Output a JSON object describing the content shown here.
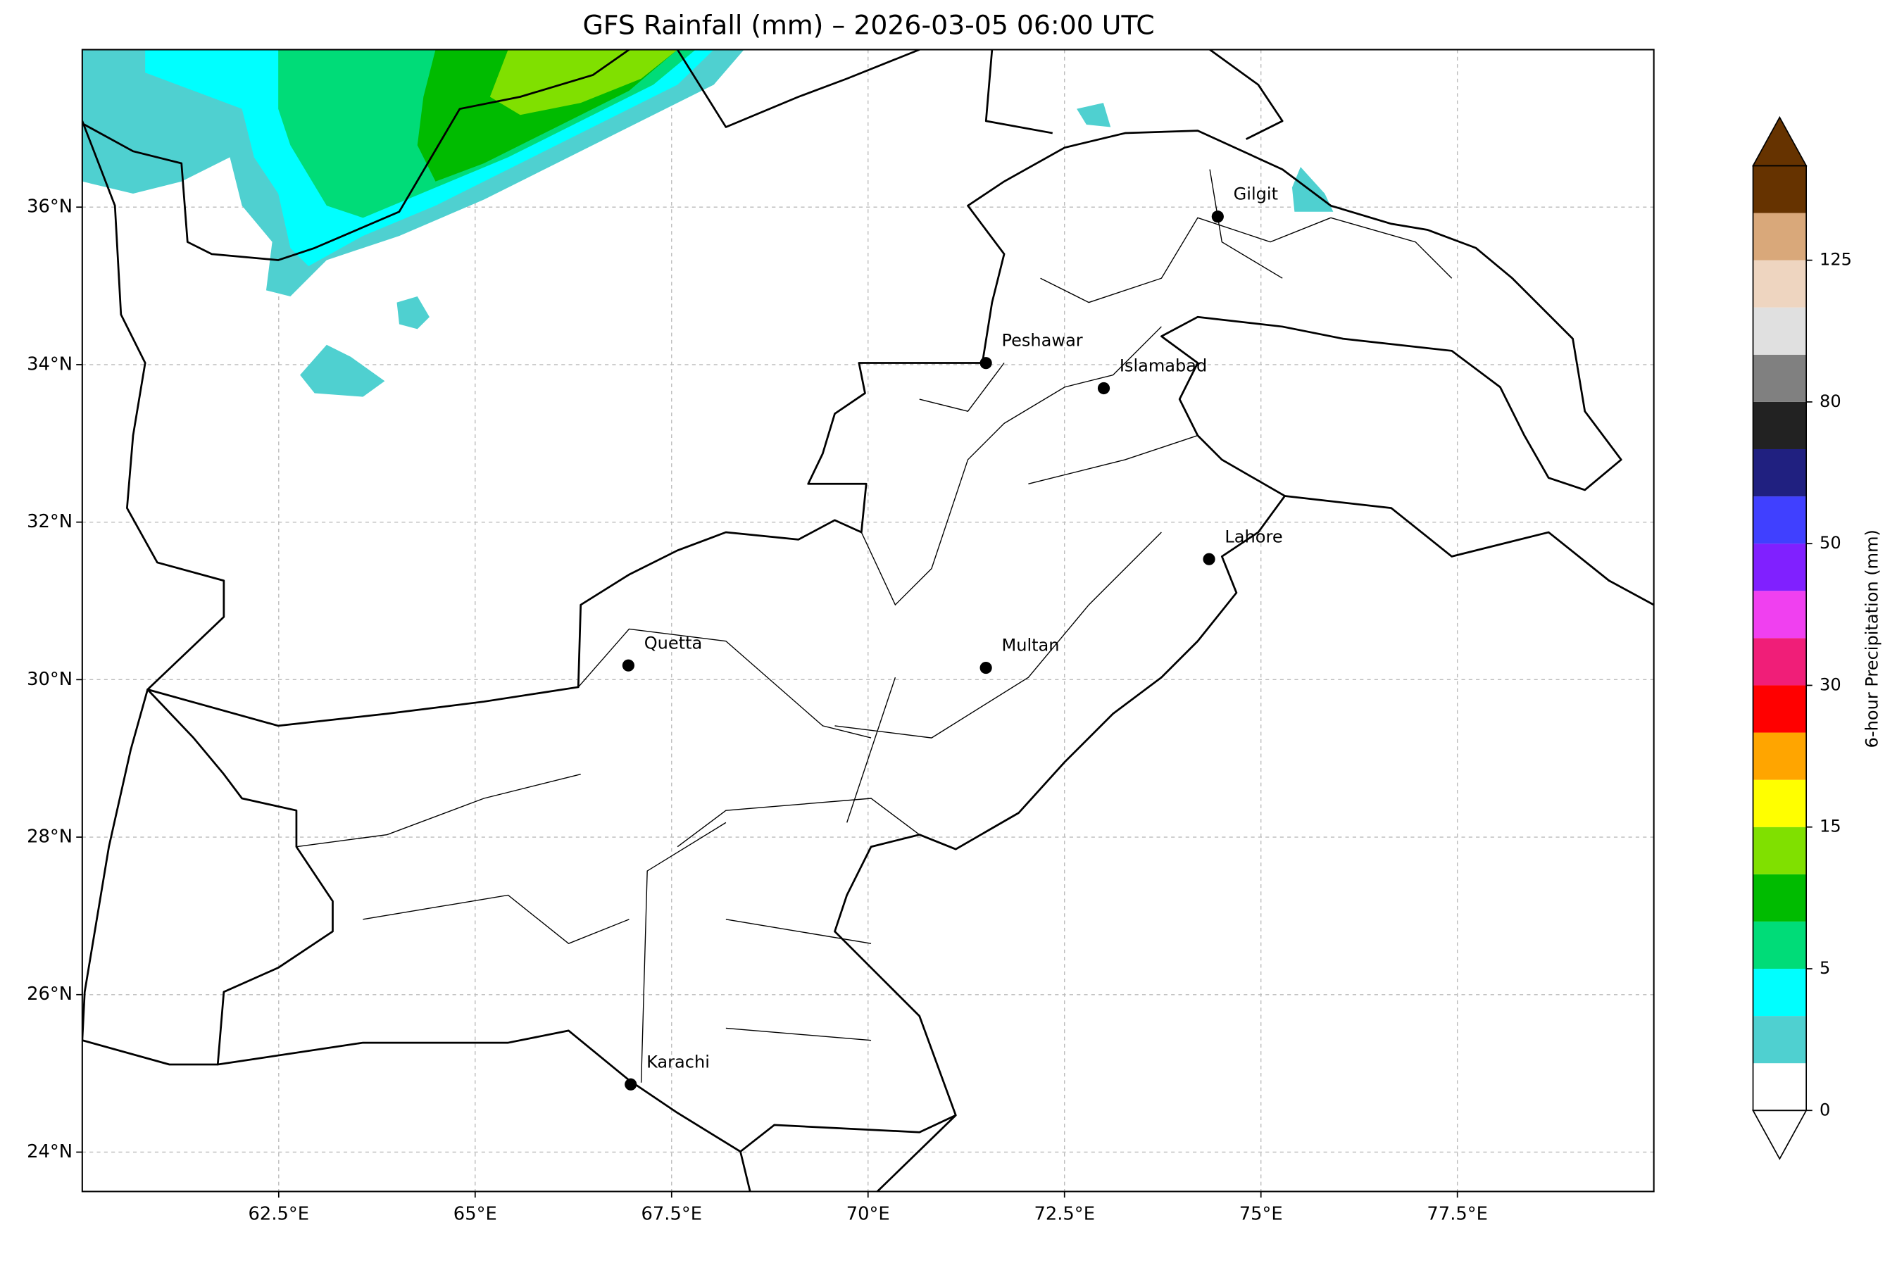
{
  "title": "GFS Rainfall (mm) – 2026-03-05 06:00 UTC",
  "map": {
    "xlim": [
      60,
      80
    ],
    "ylim": [
      23.5,
      38
    ],
    "grid": true,
    "xticks": [
      {
        "value": 62.5,
        "label": "62.5°E"
      },
      {
        "value": 65,
        "label": "65°E"
      },
      {
        "value": 67.5,
        "label": "67.5°E"
      },
      {
        "value": 70,
        "label": "70°E"
      },
      {
        "value": 72.5,
        "label": "72.5°E"
      },
      {
        "value": 75,
        "label": "75°E"
      },
      {
        "value": 77.5,
        "label": "77.5°E"
      }
    ],
    "yticks": [
      {
        "value": 24,
        "label": "24°N"
      },
      {
        "value": 26,
        "label": "26°N"
      },
      {
        "value": 28,
        "label": "28°N"
      },
      {
        "value": 30,
        "label": "30°N"
      },
      {
        "value": 32,
        "label": "32°N"
      },
      {
        "value": 34,
        "label": "34°N"
      },
      {
        "value": 36,
        "label": "36°N"
      }
    ],
    "cities": [
      {
        "name": "Gilgit",
        "lon": 74.45,
        "lat": 35.88
      },
      {
        "name": "Peshawar",
        "lon": 71.5,
        "lat": 34.02
      },
      {
        "name": "Islamabad",
        "lon": 73.0,
        "lat": 33.7
      },
      {
        "name": "Lahore",
        "lon": 74.34,
        "lat": 31.53
      },
      {
        "name": "Quetta",
        "lon": 66.95,
        "lat": 30.18
      },
      {
        "name": "Multan",
        "lon": 71.5,
        "lat": 30.15
      },
      {
        "name": "Karachi",
        "lon": 66.98,
        "lat": 24.86
      }
    ]
  },
  "colorbar": {
    "label": "6-hour Precipitation (mm)",
    "levels": [
      0,
      1,
      2.5,
      5,
      7.5,
      10,
      15,
      20,
      25,
      30,
      35,
      40,
      50,
      60,
      70,
      80,
      90,
      100,
      125,
      150,
      200
    ],
    "colors": [
      "#ffffff",
      "#4fd0d0",
      "#00ffff",
      "#00dc78",
      "#00bb00",
      "#80e000",
      "#ffff00",
      "#ffa500",
      "#ff0000",
      "#f01e78",
      "#f040f0",
      "#8020ff",
      "#4040ff",
      "#202080",
      "#222222",
      "#808080",
      "#e0e0e0",
      "#eed5c0",
      "#d9a87a",
      "#663300"
    ],
    "ticks": [
      0,
      5,
      15,
      30,
      50,
      80,
      125
    ]
  }
}
